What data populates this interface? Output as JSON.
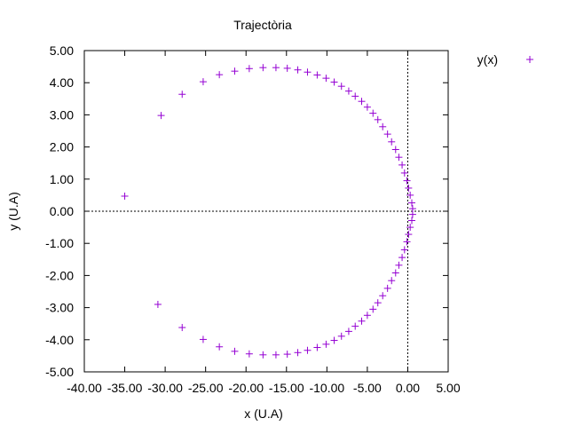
{
  "chart_data": {
    "type": "scatter",
    "title": "Trajectòria",
    "xlabel": "x (U.A)",
    "ylabel": "y (U.A)",
    "xlim": [
      -40,
      5
    ],
    "ylim": [
      -5,
      5
    ],
    "xticks": [
      "-40.00",
      "-35.00",
      "-30.00",
      "-25.00",
      "-20.00",
      "-15.00",
      "-10.00",
      "-5.00",
      "0.00",
      "5.00"
    ],
    "yticks": [
      "-5.00",
      "-4.00",
      "-3.00",
      "-2.00",
      "-1.00",
      "0.00",
      "1.00",
      "2.00",
      "3.00",
      "4.00",
      "5.00"
    ],
    "zero_axes": true,
    "grid": false,
    "legend_position": "top-right outside",
    "series": [
      {
        "name": "y(x)",
        "color": "#9400d3",
        "marker": "plus",
        "points": [
          [
            -35.0,
            0.47
          ],
          [
            -30.5,
            2.98
          ],
          [
            -27.9,
            3.64
          ],
          [
            -25.3,
            4.03
          ],
          [
            -23.3,
            4.25
          ],
          [
            -21.4,
            4.36
          ],
          [
            -19.6,
            4.44
          ],
          [
            -17.9,
            4.47
          ],
          [
            -16.3,
            4.47
          ],
          [
            -14.9,
            4.45
          ],
          [
            -13.6,
            4.4
          ],
          [
            -12.4,
            4.33
          ],
          [
            -11.2,
            4.24
          ],
          [
            -10.1,
            4.14
          ],
          [
            -9.1,
            4.02
          ],
          [
            -8.2,
            3.89
          ],
          [
            -7.3,
            3.74
          ],
          [
            -6.5,
            3.58
          ],
          [
            -5.7,
            3.42
          ],
          [
            -5.0,
            3.24
          ],
          [
            -4.3,
            3.05
          ],
          [
            -3.7,
            2.85
          ],
          [
            -3.1,
            2.63
          ],
          [
            -2.5,
            2.4
          ],
          [
            -2.0,
            2.16
          ],
          [
            -1.5,
            1.92
          ],
          [
            -1.1,
            1.68
          ],
          [
            -0.7,
            1.44
          ],
          [
            -0.4,
            1.19
          ],
          [
            -0.1,
            0.95
          ],
          [
            0.1,
            0.72
          ],
          [
            0.3,
            0.5
          ],
          [
            0.5,
            0.26
          ],
          [
            0.6,
            0.08
          ],
          [
            0.6,
            -0.1
          ],
          [
            0.5,
            -0.29
          ],
          [
            0.3,
            -0.5
          ],
          [
            0.1,
            -0.72
          ],
          [
            -0.1,
            -0.95
          ],
          [
            -0.4,
            -1.2
          ],
          [
            -0.7,
            -1.44
          ],
          [
            -1.1,
            -1.68
          ],
          [
            -1.5,
            -1.92
          ],
          [
            -2.0,
            -2.16
          ],
          [
            -2.5,
            -2.4
          ],
          [
            -3.1,
            -2.63
          ],
          [
            -3.7,
            -2.85
          ],
          [
            -4.3,
            -3.05
          ],
          [
            -5.0,
            -3.24
          ],
          [
            -5.7,
            -3.42
          ],
          [
            -6.5,
            -3.58
          ],
          [
            -7.3,
            -3.74
          ],
          [
            -8.2,
            -3.89
          ],
          [
            -9.1,
            -4.02
          ],
          [
            -10.1,
            -4.14
          ],
          [
            -11.2,
            -4.24
          ],
          [
            -12.4,
            -4.33
          ],
          [
            -13.6,
            -4.4
          ],
          [
            -14.9,
            -4.45
          ],
          [
            -16.3,
            -4.47
          ],
          [
            -17.9,
            -4.47
          ],
          [
            -19.6,
            -4.44
          ],
          [
            -21.4,
            -4.36
          ],
          [
            -23.3,
            -4.22
          ],
          [
            -25.3,
            -3.99
          ],
          [
            -27.9,
            -3.62
          ],
          [
            -30.9,
            -2.9
          ]
        ]
      }
    ]
  }
}
